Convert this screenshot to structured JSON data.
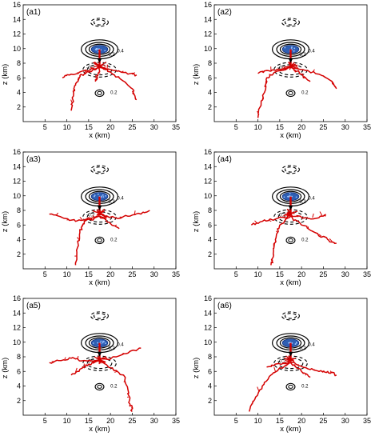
{
  "chart_data": [
    {
      "type": "scatter",
      "panel_label": "(a1)",
      "xlabel": "x (km)",
      "ylabel": "z (km)",
      "xlim": [
        0,
        35
      ],
      "ylim": [
        0,
        16
      ],
      "xticks": [
        "5",
        "10",
        "15",
        "20",
        "25",
        "30",
        "35"
      ],
      "yticks": [
        "2",
        "4",
        "6",
        "8",
        "10",
        "12",
        "14",
        "16"
      ],
      "contour_labels": [
        "0.2",
        "0.4",
        "-0.2",
        "0.2"
      ],
      "discharge_branches": [
        [
          [
            17.5,
            7.5
          ],
          [
            15,
            6.8
          ],
          [
            13,
            6.3
          ],
          [
            12,
            5
          ],
          [
            11.5,
            3.5
          ],
          [
            11,
            1.5
          ]
        ],
        [
          [
            17.5,
            7.5
          ],
          [
            14,
            7
          ],
          [
            11,
            6.5
          ],
          [
            9,
            6
          ]
        ],
        [
          [
            17.5,
            7.5
          ],
          [
            21,
            7
          ],
          [
            24,
            6.5
          ],
          [
            26,
            6.4
          ]
        ],
        [
          [
            17.5,
            7.5
          ],
          [
            20,
            6.8
          ],
          [
            22,
            6
          ],
          [
            25,
            4.5
          ],
          [
            26,
            3
          ]
        ],
        [
          [
            17.5,
            7.5
          ],
          [
            17,
            6
          ],
          [
            16.5,
            5.5
          ]
        ]
      ]
    },
    {
      "type": "scatter",
      "panel_label": "(a2)",
      "xlabel": "x (km)",
      "ylabel": "z (km)",
      "xlim": [
        0,
        35
      ],
      "ylim": [
        0,
        16
      ],
      "xticks": [
        "5",
        "10",
        "15",
        "20",
        "25",
        "30",
        "35"
      ],
      "yticks": [
        "2",
        "4",
        "6",
        "8",
        "10",
        "12",
        "14",
        "16"
      ],
      "contour_labels": [
        "0.2",
        "0.4",
        "-0.2",
        "0.2"
      ],
      "discharge_branches": [
        [
          [
            17.5,
            7.5
          ],
          [
            14,
            6.8
          ],
          [
            12,
            6
          ],
          [
            11.5,
            4
          ],
          [
            10.5,
            2
          ],
          [
            10,
            0.5
          ]
        ],
        [
          [
            17.5,
            7.5
          ],
          [
            14,
            7
          ],
          [
            12,
            7
          ],
          [
            10,
            6.6
          ]
        ],
        [
          [
            17.5,
            7.5
          ],
          [
            21,
            7
          ],
          [
            24,
            6.5
          ],
          [
            27,
            5.5
          ],
          [
            28,
            4.5
          ]
        ],
        [
          [
            17.5,
            7.5
          ],
          [
            20,
            6.5
          ],
          [
            22,
            5.5
          ]
        ]
      ]
    },
    {
      "type": "scatter",
      "panel_label": "(a3)",
      "xlabel": "x (km)",
      "ylabel": "z (km)",
      "xlim": [
        0,
        35
      ],
      "ylim": [
        0,
        16
      ],
      "xticks": [
        "5",
        "10",
        "15",
        "20",
        "25",
        "30",
        "35"
      ],
      "yticks": [
        "2",
        "4",
        "6",
        "8",
        "10",
        "12",
        "14",
        "16"
      ],
      "contour_labels": [
        "0.2",
        "0.4",
        "-0.2",
        "0.2"
      ],
      "discharge_branches": [
        [
          [
            17.5,
            7.2
          ],
          [
            15,
            7
          ],
          [
            12,
            6.5
          ],
          [
            9,
            7
          ],
          [
            6,
            7.5
          ]
        ],
        [
          [
            17.5,
            7.2
          ],
          [
            14,
            6.5
          ],
          [
            13,
            5
          ],
          [
            12.5,
            3
          ],
          [
            12,
            0.5
          ]
        ],
        [
          [
            17.5,
            7.2
          ],
          [
            21,
            7
          ],
          [
            24,
            7.2
          ],
          [
            27,
            7.5
          ],
          [
            29,
            8
          ]
        ],
        [
          [
            17.5,
            7.2
          ],
          [
            20,
            6.2
          ],
          [
            22,
            5.5
          ]
        ]
      ]
    },
    {
      "type": "scatter",
      "panel_label": "(a4)",
      "xlabel": "x (km)",
      "ylabel": "z (km)",
      "xlim": [
        0,
        35
      ],
      "ylim": [
        0,
        16
      ],
      "xticks": [
        "5",
        "10",
        "15",
        "20",
        "25",
        "30",
        "35"
      ],
      "yticks": [
        "2",
        "4",
        "6",
        "8",
        "10",
        "12",
        "14",
        "16"
      ],
      "contour_labels": [
        "0.2",
        "0.4",
        "-0.2",
        "0.2"
      ],
      "discharge_branches": [
        [
          [
            17.5,
            7.2
          ],
          [
            14,
            6.8
          ],
          [
            11,
            6.5
          ],
          [
            8.5,
            6
          ]
        ],
        [
          [
            17.5,
            7.2
          ],
          [
            15,
            6
          ],
          [
            14,
            4
          ],
          [
            13.5,
            2
          ],
          [
            13,
            0.5
          ]
        ],
        [
          [
            17.5,
            7.2
          ],
          [
            21,
            7
          ],
          [
            24,
            7
          ],
          [
            25.5,
            7.5
          ]
        ],
        [
          [
            17.5,
            7.2
          ],
          [
            20,
            6
          ],
          [
            23,
            5
          ],
          [
            26,
            4
          ],
          [
            28,
            3.5
          ]
        ]
      ]
    },
    {
      "type": "scatter",
      "panel_label": "(a5)",
      "xlabel": "x (km)",
      "ylabel": "z (km)",
      "xlim": [
        0,
        35
      ],
      "ylim": [
        0,
        16
      ],
      "xticks": [
        "5",
        "10",
        "15",
        "20",
        "25",
        "30",
        "35"
      ],
      "yticks": [
        "2",
        "4",
        "6",
        "8",
        "10",
        "12",
        "14",
        "16"
      ],
      "contour_labels": [
        "0.2",
        "0.4",
        "-0.2",
        "0.2"
      ],
      "discharge_branches": [
        [
          [
            17.5,
            7.5
          ],
          [
            14,
            7.5
          ],
          [
            11,
            7.8
          ],
          [
            8,
            7.5
          ],
          [
            6,
            7.2
          ]
        ],
        [
          [
            17.5,
            7.5
          ],
          [
            15,
            7
          ],
          [
            13,
            6.3
          ],
          [
            11,
            5.5
          ]
        ],
        [
          [
            17.5,
            7.5
          ],
          [
            21,
            8
          ],
          [
            24,
            8.5
          ],
          [
            27,
            9.2
          ]
        ],
        [
          [
            17.5,
            7.5
          ],
          [
            20,
            6.5
          ],
          [
            23,
            5.5
          ],
          [
            24,
            3.5
          ],
          [
            24.5,
            1.5
          ],
          [
            25,
            0.5
          ]
        ]
      ]
    },
    {
      "type": "scatter",
      "panel_label": "(a6)",
      "xlabel": "x (km)",
      "ylabel": "z (km)",
      "xlim": [
        0,
        35
      ],
      "ylim": [
        0,
        16
      ],
      "xticks": [
        "5",
        "10",
        "15",
        "20",
        "25",
        "30",
        "35"
      ],
      "yticks": [
        "2",
        "4",
        "6",
        "8",
        "10",
        "12",
        "14",
        "16"
      ],
      "contour_labels": [
        "0.2",
        "0.4",
        "-0.2",
        "0.2"
      ],
      "discharge_branches": [
        [
          [
            17.5,
            7.2
          ],
          [
            15,
            6.5
          ],
          [
            13,
            5.5
          ],
          [
            11,
            4
          ],
          [
            9.5,
            2.5
          ],
          [
            8,
            0.5
          ]
        ],
        [
          [
            17.5,
            7.2
          ],
          [
            14,
            7
          ],
          [
            12,
            6.6
          ]
        ],
        [
          [
            17.5,
            7.2
          ],
          [
            21,
            6.5
          ],
          [
            24,
            6
          ],
          [
            26,
            6
          ],
          [
            28,
            5.5
          ]
        ],
        [
          [
            17.5,
            7.2
          ],
          [
            20,
            6
          ],
          [
            22,
            5.2
          ]
        ]
      ]
    }
  ]
}
